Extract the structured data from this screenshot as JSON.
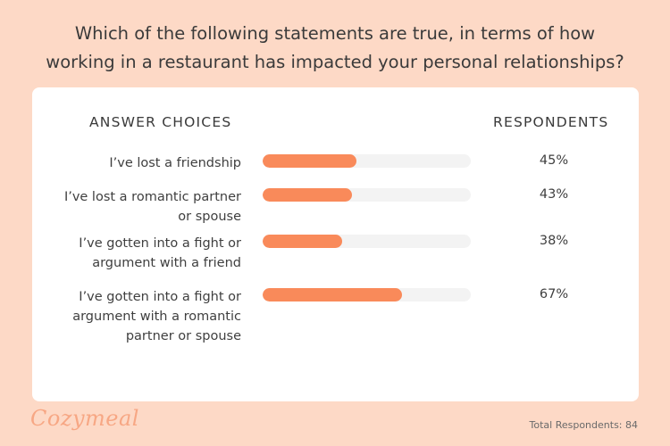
{
  "title_lines": [
    "Which of the following statements are true, in terms of how",
    "working in a restaurant has impacted your personal relationships?"
  ],
  "headers": {
    "answer_choices": "ANSWER CHOICES",
    "respondents": "RESPONDENTS"
  },
  "colors": {
    "background": "#FDD9C6",
    "bar": "#F98A5A",
    "track": "#F3F3F3",
    "logo": "#F7A784"
  },
  "chart_data": {
    "type": "bar",
    "orientation": "horizontal",
    "title": "Which of the following statements are true, in terms of how working in a restaurant has impacted your personal relationships?",
    "xlim": [
      0,
      100
    ],
    "categories": [
      "I’ve lost a friendship",
      "I’ve lost a romantic partner or spouse",
      "I’ve gotten into a fight or argument with a friend",
      "I’ve gotten into a fight or argument with a romantic partner or spouse"
    ],
    "values": [
      45,
      43,
      38,
      67
    ],
    "rows": [
      {
        "label_lines": [
          "I’ve lost a friendship"
        ],
        "value": 45,
        "value_label": "45%"
      },
      {
        "label_lines": [
          "I’ve lost a romantic partner",
          "or spouse"
        ],
        "value": 43,
        "value_label": "43%"
      },
      {
        "label_lines": [
          "I’ve gotten into a fight or",
          "argument with a friend"
        ],
        "value": 38,
        "value_label": "38%"
      },
      {
        "label_lines": [
          "I’ve gotten into a fight or",
          "argument with a romantic",
          "partner or spouse"
        ],
        "value": 67,
        "value_label": "67%"
      }
    ]
  },
  "footer": {
    "logo_text": "Cozymeal",
    "total_respondents": "Total Respondents: 84"
  }
}
